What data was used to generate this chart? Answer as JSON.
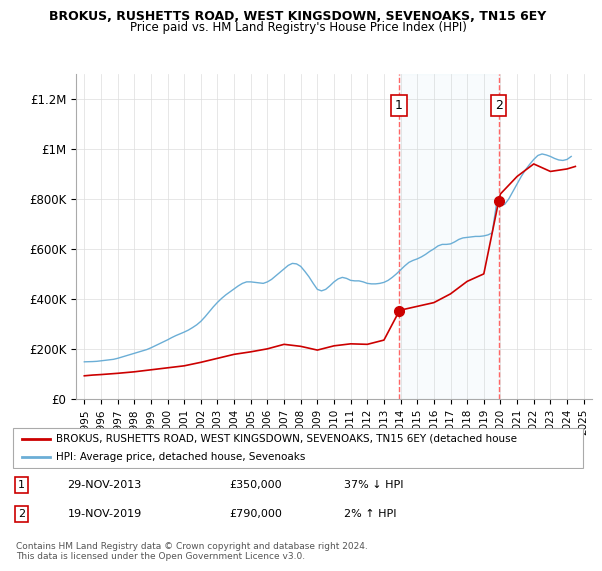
{
  "title": "BROKUS, RUSHETTS ROAD, WEST KINGSDOWN, SEVENOAKS, TN15 6EY",
  "subtitle": "Price paid vs. HM Land Registry's House Price Index (HPI)",
  "ylabel_ticks": [
    "£0",
    "£200K",
    "£400K",
    "£600K",
    "£800K",
    "£1M",
    "£1.2M"
  ],
  "ytick_values": [
    0,
    200000,
    400000,
    600000,
    800000,
    1000000,
    1200000
  ],
  "ylim": [
    0,
    1300000
  ],
  "xlim_start": 1994.5,
  "xlim_end": 2025.5,
  "sale1_x": 2013.91,
  "sale1_y": 350000,
  "sale1_label": "1",
  "sale2_x": 2019.89,
  "sale2_y": 790000,
  "sale2_label": "2",
  "vline1_x": 2013.91,
  "vline2_x": 2019.89,
  "hpi_color": "#6baed6",
  "price_color": "#cc0000",
  "vline_color": "#ff6666",
  "legend_price_label": "BROKUS, RUSHETTS ROAD, WEST KINGSDOWN, SEVENOAKS, TN15 6EY (detached house",
  "legend_hpi_label": "HPI: Average price, detached house, Sevenoaks",
  "footnote": "Contains HM Land Registry data © Crown copyright and database right 2024.\nThis data is licensed under the Open Government Licence v3.0.",
  "table_rows": [
    [
      "1",
      "29-NOV-2013",
      "£350,000",
      "37% ↓ HPI"
    ],
    [
      "2",
      "19-NOV-2019",
      "£790,000",
      "2% ↑ HPI"
    ]
  ],
  "hpi_data": {
    "years": [
      1995.0,
      1995.25,
      1995.5,
      1995.75,
      1996.0,
      1996.25,
      1996.5,
      1996.75,
      1997.0,
      1997.25,
      1997.5,
      1997.75,
      1998.0,
      1998.25,
      1998.5,
      1998.75,
      1999.0,
      1999.25,
      1999.5,
      1999.75,
      2000.0,
      2000.25,
      2000.5,
      2000.75,
      2001.0,
      2001.25,
      2001.5,
      2001.75,
      2002.0,
      2002.25,
      2002.5,
      2002.75,
      2003.0,
      2003.25,
      2003.5,
      2003.75,
      2004.0,
      2004.25,
      2004.5,
      2004.75,
      2005.0,
      2005.25,
      2005.5,
      2005.75,
      2006.0,
      2006.25,
      2006.5,
      2006.75,
      2007.0,
      2007.25,
      2007.5,
      2007.75,
      2008.0,
      2008.25,
      2008.5,
      2008.75,
      2009.0,
      2009.25,
      2009.5,
      2009.75,
      2010.0,
      2010.25,
      2010.5,
      2010.75,
      2011.0,
      2011.25,
      2011.5,
      2011.75,
      2012.0,
      2012.25,
      2012.5,
      2012.75,
      2013.0,
      2013.25,
      2013.5,
      2013.75,
      2014.0,
      2014.25,
      2014.5,
      2014.75,
      2015.0,
      2015.25,
      2015.5,
      2015.75,
      2016.0,
      2016.25,
      2016.5,
      2016.75,
      2017.0,
      2017.25,
      2017.5,
      2017.75,
      2018.0,
      2018.25,
      2018.5,
      2018.75,
      2019.0,
      2019.25,
      2019.5,
      2019.75,
      2020.0,
      2020.25,
      2020.5,
      2020.75,
      2021.0,
      2021.25,
      2021.5,
      2021.75,
      2022.0,
      2022.25,
      2022.5,
      2022.75,
      2023.0,
      2023.25,
      2023.5,
      2023.75,
      2024.0,
      2024.25
    ],
    "values": [
      148000,
      148500,
      149000,
      150000,
      152000,
      154000,
      156000,
      158000,
      162000,
      167000,
      172000,
      177000,
      182000,
      187000,
      192000,
      197000,
      204000,
      212000,
      220000,
      228000,
      236000,
      245000,
      253000,
      260000,
      267000,
      275000,
      285000,
      296000,
      310000,
      328000,
      348000,
      368000,
      386000,
      402000,
      416000,
      428000,
      440000,
      452000,
      462000,
      468000,
      468000,
      466000,
      464000,
      462000,
      468000,
      478000,
      492000,
      506000,
      520000,
      534000,
      542000,
      540000,
      530000,
      510000,
      488000,
      462000,
      438000,
      432000,
      438000,
      452000,
      468000,
      480000,
      486000,
      482000,
      474000,
      472000,
      472000,
      468000,
      462000,
      460000,
      460000,
      462000,
      466000,
      474000,
      486000,
      500000,
      516000,
      532000,
      546000,
      554000,
      560000,
      568000,
      578000,
      590000,
      600000,
      612000,
      618000,
      618000,
      620000,
      628000,
      638000,
      644000,
      646000,
      648000,
      650000,
      650000,
      652000,
      656000,
      664000,
      774000,
      776000,
      778000,
      800000,
      830000,
      860000,
      890000,
      916000,
      938000,
      958000,
      974000,
      980000,
      976000,
      970000,
      962000,
      956000,
      954000,
      958000,
      970000
    ]
  },
  "price_data": {
    "years": [
      1995.0,
      1995.5,
      1996.0,
      1997.0,
      1998.0,
      1999.0,
      2000.0,
      2001.0,
      2002.0,
      2003.0,
      2004.0,
      2005.0,
      2006.0,
      2007.0,
      2008.0,
      2009.0,
      2010.0,
      2011.0,
      2012.0,
      2013.0,
      2013.91,
      2014.0,
      2015.0,
      2016.0,
      2017.0,
      2018.0,
      2019.0,
      2019.89,
      2020.0,
      2021.0,
      2022.0,
      2023.0,
      2024.0,
      2024.5
    ],
    "values": [
      92000,
      95000,
      97000,
      102000,
      108000,
      116000,
      124000,
      132000,
      146000,
      162000,
      178000,
      188000,
      200000,
      218000,
      210000,
      195000,
      212000,
      220000,
      218000,
      235000,
      350000,
      355000,
      370000,
      385000,
      420000,
      470000,
      500000,
      790000,
      820000,
      890000,
      940000,
      910000,
      920000,
      930000
    ]
  }
}
